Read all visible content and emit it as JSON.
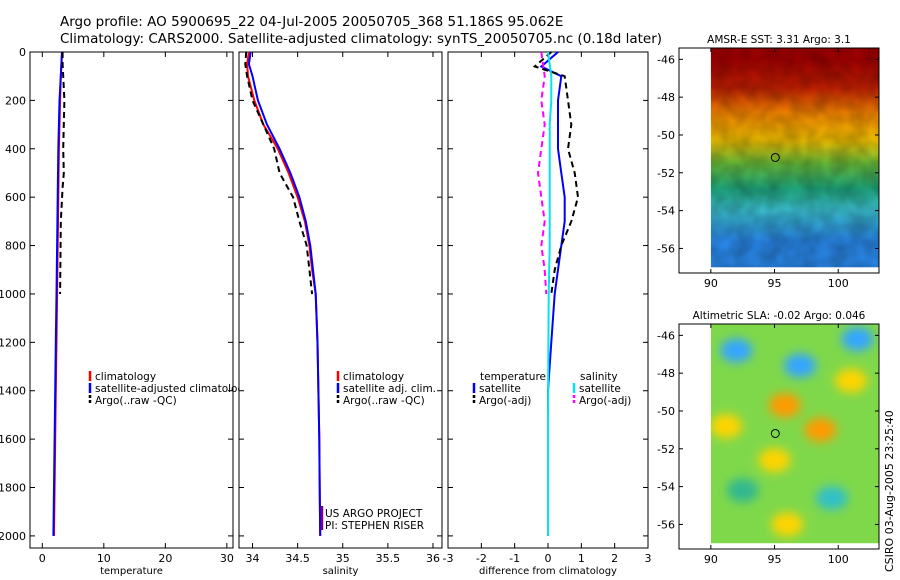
{
  "header": {
    "title_line1": "Argo profile: AO 5900695_22 04-Jul-2005 20050705_368 51.186S 95.062E",
    "title_line2": "Climatology: CARS2000. Satellite-adjusted climatology: synTS_20050705.nc (0.18d later)"
  },
  "credit": "CSIRO 03-Aug-2005 23:25:40",
  "colors": {
    "climatology": "#ff0000",
    "satellite": "#0000ff",
    "argo": "#000000",
    "salinity_satellite": "#00e5ee",
    "salinity_argo": "#ff00ff"
  },
  "chart_data": [
    {
      "type": "line",
      "id": "temperature",
      "xlabel": "temperature",
      "ylabel": "",
      "xlim": [
        -2,
        31
      ],
      "ylim": [
        2050,
        0
      ],
      "xticks": [
        0,
        10,
        20,
        30
      ],
      "xtick_labels": [
        "0",
        "10",
        "20",
        "30"
      ],
      "yticks": [
        0,
        200,
        400,
        600,
        800,
        1000,
        1200,
        1400,
        1600,
        1800,
        2000
      ],
      "ytick_labels": [
        "0",
        "200",
        "400",
        "600",
        "800",
        "1000",
        "1200",
        "1400",
        "1600",
        "1800",
        "2000"
      ],
      "legend": [
        "climatology",
        "satellite-adjusted climatology",
        "Argo(..raw -QC)"
      ],
      "series": [
        {
          "name": "climatology",
          "style": "solid",
          "color": "#ff0000",
          "x": [
            3.2,
            3.0,
            2.9,
            2.8,
            2.7,
            2.6,
            2.5,
            2.4,
            2.3,
            2.2,
            2.1,
            2.0,
            1.9
          ],
          "y": [
            0,
            100,
            200,
            300,
            400,
            600,
            800,
            1000,
            1200,
            1400,
            1600,
            1800,
            2000
          ]
        },
        {
          "name": "satellite-adjusted climatology",
          "style": "solid",
          "color": "#0000ff",
          "x": [
            3.2,
            3.1,
            3.0,
            2.8,
            2.6,
            2.5,
            2.4,
            2.3,
            2.2,
            2.1,
            2.0,
            1.9,
            1.8
          ],
          "y": [
            0,
            50,
            100,
            200,
            400,
            600,
            800,
            1000,
            1200,
            1400,
            1600,
            1800,
            2000
          ]
        },
        {
          "name": "Argo(..raw -QC)",
          "style": "dashed",
          "color": "#000000",
          "x": [
            3.3,
            3.3,
            3.4,
            3.6,
            3.5,
            3.4,
            3.5,
            3.3,
            3.0,
            2.9
          ],
          "y": [
            0,
            50,
            100,
            200,
            300,
            400,
            500,
            560,
            700,
            1000
          ]
        }
      ]
    },
    {
      "type": "line",
      "id": "salinity",
      "xlabel": "salinity",
      "ylabel": "",
      "xlim": [
        33.85,
        36.1
      ],
      "ylim": [
        2050,
        0
      ],
      "xticks": [
        34,
        34.5,
        35,
        35.5,
        36
      ],
      "xtick_labels": [
        "34",
        "34.5",
        "35",
        "35.5",
        "36"
      ],
      "legend": [
        "climatology",
        "satellite adj. clim.",
        "Argo(..raw -QC)"
      ],
      "annotation": [
        "US ARGO PROJECT",
        "PI: STEPHEN RISER"
      ],
      "series": [
        {
          "name": "climatology",
          "style": "solid",
          "color": "#ff0000",
          "x": [
            33.96,
            33.94,
            33.95,
            34.02,
            34.12,
            34.28,
            34.4,
            34.5,
            34.58,
            34.63,
            34.66,
            34.7,
            34.72,
            34.73,
            34.74,
            34.745,
            34.75
          ],
          "y": [
            0,
            50,
            100,
            200,
            300,
            400,
            500,
            600,
            700,
            800,
            900,
            1000,
            1200,
            1400,
            1600,
            1800,
            2000
          ]
        },
        {
          "name": "satellite adj. clim.",
          "style": "solid",
          "color": "#0000ff",
          "x": [
            33.98,
            33.96,
            34.0,
            34.06,
            34.16,
            34.3,
            34.42,
            34.52,
            34.59,
            34.64,
            34.67,
            34.7,
            34.72,
            34.73,
            34.74,
            34.745,
            34.75
          ],
          "y": [
            0,
            50,
            100,
            200,
            300,
            400,
            500,
            600,
            700,
            800,
            900,
            1000,
            1200,
            1400,
            1600,
            1800,
            2000
          ]
        },
        {
          "name": "Argo(..raw -QC)",
          "style": "dashed",
          "color": "#000000",
          "x": [
            33.93,
            33.92,
            33.94,
            34.0,
            34.12,
            34.24,
            34.3,
            34.45,
            34.52,
            34.6,
            34.66
          ],
          "y": [
            0,
            50,
            100,
            200,
            300,
            400,
            500,
            600,
            700,
            800,
            1000
          ]
        }
      ]
    },
    {
      "type": "line",
      "id": "difference",
      "xlabel": "difference from climatology",
      "ylabel": "",
      "xlim": [
        -3,
        3
      ],
      "ylim": [
        2050,
        0
      ],
      "xticks": [
        -3,
        -2,
        -1,
        0,
        1,
        2,
        3
      ],
      "xtick_labels": [
        "-3",
        "-2",
        "-1",
        "0",
        "1",
        "2",
        "3"
      ],
      "legend_left_title": "temperature",
      "legend_left": [
        "satellite",
        "Argo(-adj)"
      ],
      "legend_right_title": "salinity",
      "legend_right": [
        "satellite",
        "Argo(-adj)"
      ],
      "series": [
        {
          "name": "temperature satellite",
          "style": "solid",
          "color": "#0000ff",
          "x": [
            0.3,
            -0.2,
            0.4,
            0.3,
            0.3,
            0.3,
            0.4,
            0.5,
            0.5,
            0.4,
            0.3,
            0.2,
            0.1,
            0.0,
            0.0,
            0.0
          ],
          "y": [
            0,
            60,
            100,
            200,
            300,
            400,
            500,
            600,
            700,
            800,
            900,
            1000,
            1200,
            1400,
            1600,
            2000
          ]
        },
        {
          "name": "temperature Argo(-adj)",
          "style": "dashed",
          "color": "#000000",
          "x": [
            0.1,
            -0.4,
            0.5,
            0.6,
            0.7,
            0.6,
            0.8,
            0.9,
            0.7,
            0.4,
            0.2,
            0.1
          ],
          "y": [
            0,
            60,
            100,
            200,
            300,
            400,
            500,
            600,
            700,
            800,
            900,
            1000
          ]
        },
        {
          "name": "salinity satellite",
          "style": "solid",
          "color": "#00e5ee",
          "x": [
            0.0,
            0.1,
            0.1,
            0.05,
            0.05,
            0.05,
            0.05,
            0.05,
            0.05,
            0.02,
            0.0,
            0.0
          ],
          "y": [
            0,
            100,
            200,
            300,
            400,
            500,
            600,
            700,
            800,
            1000,
            1500,
            2000
          ]
        },
        {
          "name": "salinity Argo(-adj)",
          "style": "dashed",
          "color": "#ff00ff",
          "x": [
            -0.2,
            -0.1,
            -0.2,
            -0.1,
            -0.2,
            -0.3,
            -0.2,
            -0.1,
            -0.2,
            -0.1,
            -0.05
          ],
          "y": [
            0,
            100,
            200,
            300,
            400,
            500,
            600,
            700,
            800,
            900,
            1000
          ]
        }
      ]
    },
    {
      "type": "heatmap",
      "id": "sst_map",
      "title": "AMSR-E SST: 3.31  Argo: 3.1",
      "xlim": [
        87.5,
        103.2
      ],
      "ylim": [
        -57.3,
        -45.4
      ],
      "xticks": [
        90,
        95,
        100
      ],
      "xtick_labels": [
        "90",
        "95",
        "100"
      ],
      "yticks": [
        -46,
        -48,
        -50,
        -52,
        -54,
        -56
      ],
      "ytick_labels": [
        "-46",
        "-48",
        "-50",
        "-52",
        "-54",
        "-56"
      ],
      "data_extent": {
        "lon": [
          90,
          103.2
        ],
        "lat": [
          -57,
          -45.4
        ]
      },
      "marker": {
        "lon": 95.06,
        "lat": -51.19
      },
      "bands": [
        {
          "lat": -46.0,
          "color": "#a80000"
        },
        {
          "lat": -47.5,
          "color": "#cc2000"
        },
        {
          "lat": -48.8,
          "color": "#ff8800"
        },
        {
          "lat": -50.3,
          "color": "#ffcc00"
        },
        {
          "lat": -51.5,
          "color": "#6cc23a"
        },
        {
          "lat": -52.8,
          "color": "#20b080"
        },
        {
          "lat": -54.0,
          "color": "#3cc6d8"
        },
        {
          "lat": -55.6,
          "color": "#2a8aee"
        }
      ]
    },
    {
      "type": "heatmap",
      "id": "sla_map",
      "title": "Altimetric SLA: -0.02  Argo: 0.046",
      "xlim": [
        87.5,
        103.2
      ],
      "ylim": [
        -57.3,
        -45.4
      ],
      "xticks": [
        90,
        95,
        100
      ],
      "xtick_labels": [
        "90",
        "95",
        "100"
      ],
      "yticks": [
        -46,
        -48,
        -50,
        -52,
        -54,
        -56
      ],
      "ytick_labels": [
        "-46",
        "-48",
        "-50",
        "-52",
        "-54",
        "-56"
      ],
      "data_extent": {
        "lon": [
          90,
          103.2
        ],
        "lat": [
          -57,
          -45.4
        ]
      },
      "marker": {
        "lon": 95.06,
        "lat": -51.19
      },
      "base_color": "#7fd84a",
      "blobs": [
        {
          "lon": 92.0,
          "lat": -46.8,
          "color": "#34a6ff"
        },
        {
          "lon": 97.0,
          "lat": -47.6,
          "color": "#34a6ff"
        },
        {
          "lon": 101.5,
          "lat": -46.2,
          "color": "#34a6ff"
        },
        {
          "lon": 91.2,
          "lat": -50.8,
          "color": "#ffd400"
        },
        {
          "lon": 95.8,
          "lat": -49.7,
          "color": "#ff9a00"
        },
        {
          "lon": 98.6,
          "lat": -51.0,
          "color": "#ff9a00"
        },
        {
          "lon": 101.0,
          "lat": -48.4,
          "color": "#ffd400"
        },
        {
          "lon": 95.0,
          "lat": -52.6,
          "color": "#ffd400"
        },
        {
          "lon": 92.5,
          "lat": -54.2,
          "color": "#30b890"
        },
        {
          "lon": 99.5,
          "lat": -54.6,
          "color": "#30c0c8"
        },
        {
          "lon": 96.0,
          "lat": -56.0,
          "color": "#ffd400"
        }
      ]
    }
  ]
}
